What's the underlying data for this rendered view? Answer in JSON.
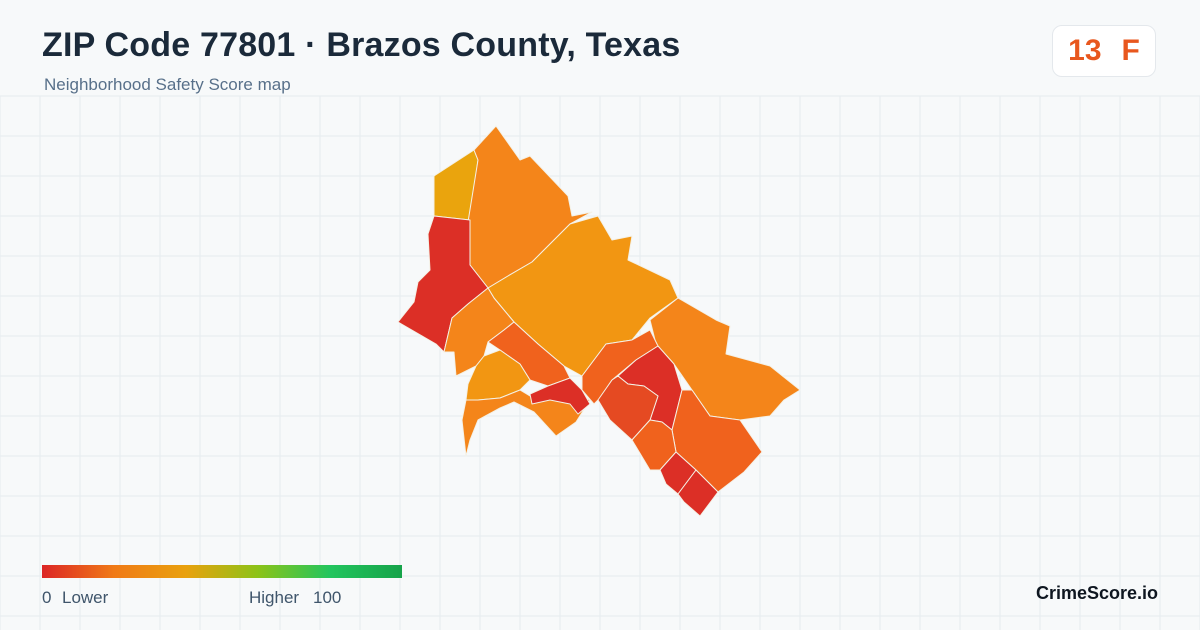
{
  "header": {
    "title": "ZIP Code 77801 · Brazos County, Texas",
    "subtitle": "Neighborhood Safety Score map"
  },
  "score_badge": {
    "score": "13",
    "grade": "F",
    "color": "#e8571e"
  },
  "legend": {
    "min_label": "0",
    "min_text": "Lower",
    "max_text": "Higher",
    "max_label": "100",
    "gradient_colors": [
      "#dc2626",
      "#f07a17",
      "#e9a10e",
      "#8cc318",
      "#22c55e",
      "#16a34a"
    ]
  },
  "brand": "CrimeScore.io",
  "map_palette": {
    "lowest": "#dc2f26",
    "low": "#e54a22",
    "mid_low": "#f0621d",
    "mid": "#f4851a",
    "mid_high": "#f29612",
    "high": "#eaa40d"
  }
}
